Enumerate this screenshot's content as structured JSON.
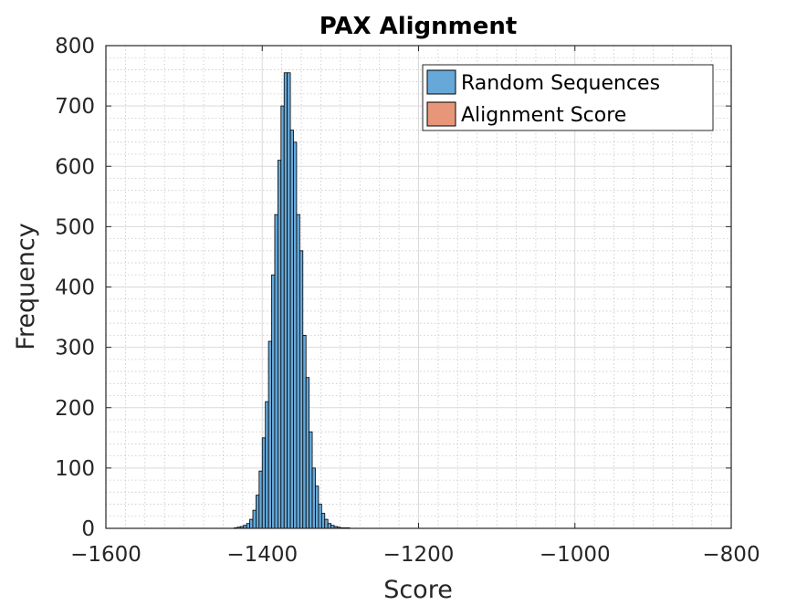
{
  "chart_data": {
    "type": "bar",
    "title": "PAX Alignment",
    "xlabel": "Score",
    "ylabel": "Frequency",
    "xlim": [
      -1600,
      -800
    ],
    "ylim": [
      0,
      800
    ],
    "xticks": [
      -1600,
      -1400,
      -1200,
      -1000,
      -800
    ],
    "xtick_labels": [
      "−1600",
      "−1400",
      "−1200",
      "−1000",
      "−800"
    ],
    "yticks": [
      0,
      100,
      200,
      300,
      400,
      500,
      600,
      700,
      800
    ],
    "ytick_labels": [
      "0",
      "100",
      "200",
      "300",
      "400",
      "500",
      "600",
      "700",
      "800"
    ],
    "grid": "major and minor",
    "legend_placement": "top-right",
    "bin_width": 4,
    "series": [
      {
        "name": "Random Sequences",
        "color": "#66A8D8",
        "bin_edges": [
          -1436,
          -1432,
          -1428,
          -1424,
          -1420,
          -1416,
          -1412,
          -1408,
          -1404,
          -1400,
          -1396,
          -1392,
          -1388,
          -1384,
          -1380,
          -1376,
          -1372,
          -1368,
          -1364,
          -1360,
          -1356,
          -1352,
          -1348,
          -1344,
          -1340,
          -1336,
          -1332,
          -1328,
          -1324,
          -1320,
          -1316,
          -1312,
          -1308,
          -1304,
          -1300,
          -1296,
          -1292,
          -1288
        ],
        "counts": [
          1,
          2,
          3,
          5,
          8,
          15,
          30,
          55,
          95,
          150,
          210,
          310,
          420,
          520,
          610,
          700,
          755,
          755,
          660,
          640,
          520,
          460,
          320,
          250,
          160,
          100,
          70,
          40,
          25,
          15,
          8,
          5,
          3,
          2,
          1,
          1,
          1
        ]
      },
      {
        "name": "Alignment Score",
        "color": "#E8967A",
        "counts": []
      }
    ]
  }
}
